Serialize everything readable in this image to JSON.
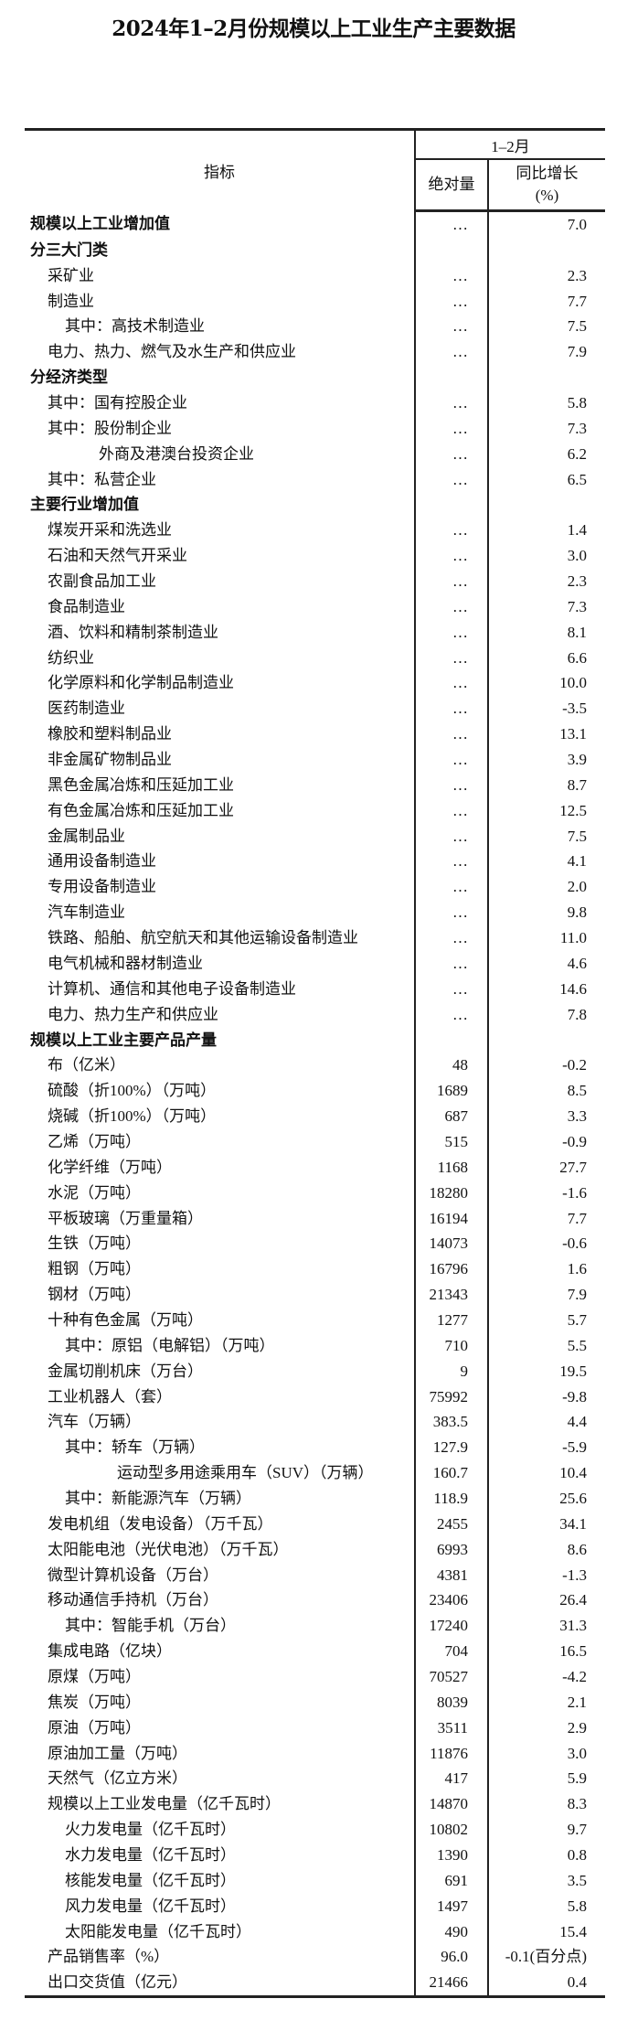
{
  "title": "2024年1–2月份规模以上工业生产主要数据",
  "header": {
    "indicator": "指标",
    "period": "1–2月",
    "absolute": "绝对量",
    "growth": "同比增长",
    "growth_unit": "(%)"
  },
  "rows": [
    {
      "label": "规模以上工业增加值",
      "abs": "…",
      "pct": "7.0",
      "level": 0,
      "bold": true
    },
    {
      "label": "分三大门类",
      "abs": "",
      "pct": "",
      "level": 0,
      "bold": true
    },
    {
      "label": "采矿业",
      "abs": "…",
      "pct": "2.3",
      "level": 1
    },
    {
      "label": "制造业",
      "abs": "…",
      "pct": "7.7",
      "level": 1
    },
    {
      "label": "其中：高技术制造业",
      "abs": "…",
      "pct": "7.5",
      "level": 2
    },
    {
      "label": "电力、热力、燃气及水生产和供应业",
      "abs": "…",
      "pct": "7.9",
      "level": 1
    },
    {
      "label": "分经济类型",
      "abs": "",
      "pct": "",
      "level": 0,
      "bold": true
    },
    {
      "label": "其中：国有控股企业",
      "abs": "…",
      "pct": "5.8",
      "level": 1
    },
    {
      "label": "其中：股份制企业",
      "abs": "…",
      "pct": "7.3",
      "level": 1
    },
    {
      "label": "外商及港澳台投资企业",
      "abs": "…",
      "pct": "6.2",
      "level": 3
    },
    {
      "label": "其中：私营企业",
      "abs": "…",
      "pct": "6.5",
      "level": 1
    },
    {
      "label": "主要行业增加值",
      "abs": "",
      "pct": "",
      "level": 0,
      "bold": true
    },
    {
      "label": "煤炭开采和洗选业",
      "abs": "…",
      "pct": "1.4",
      "level": 1
    },
    {
      "label": "石油和天然气开采业",
      "abs": "…",
      "pct": "3.0",
      "level": 1
    },
    {
      "label": "农副食品加工业",
      "abs": "…",
      "pct": "2.3",
      "level": 1
    },
    {
      "label": "食品制造业",
      "abs": "…",
      "pct": "7.3",
      "level": 1
    },
    {
      "label": "酒、饮料和精制茶制造业",
      "abs": "…",
      "pct": "8.1",
      "level": 1
    },
    {
      "label": "纺织业",
      "abs": "…",
      "pct": "6.6",
      "level": 1
    },
    {
      "label": "化学原料和化学制品制造业",
      "abs": "…",
      "pct": "10.0",
      "level": 1
    },
    {
      "label": "医药制造业",
      "abs": "…",
      "pct": "-3.5",
      "level": 1
    },
    {
      "label": "橡胶和塑料制品业",
      "abs": "…",
      "pct": "13.1",
      "level": 1
    },
    {
      "label": "非金属矿物制品业",
      "abs": "…",
      "pct": "3.9",
      "level": 1
    },
    {
      "label": "黑色金属冶炼和压延加工业",
      "abs": "…",
      "pct": "8.7",
      "level": 1
    },
    {
      "label": "有色金属冶炼和压延加工业",
      "abs": "…",
      "pct": "12.5",
      "level": 1
    },
    {
      "label": "金属制品业",
      "abs": "…",
      "pct": "7.5",
      "level": 1
    },
    {
      "label": "通用设备制造业",
      "abs": "…",
      "pct": "4.1",
      "level": 1
    },
    {
      "label": "专用设备制造业",
      "abs": "…",
      "pct": "2.0",
      "level": 1
    },
    {
      "label": "汽车制造业",
      "abs": "…",
      "pct": "9.8",
      "level": 1
    },
    {
      "label": "铁路、船舶、航空航天和其他运输设备制造业",
      "abs": "…",
      "pct": "11.0",
      "level": 1
    },
    {
      "label": "电气机械和器材制造业",
      "abs": "…",
      "pct": "4.6",
      "level": 1
    },
    {
      "label": "计算机、通信和其他电子设备制造业",
      "abs": "…",
      "pct": "14.6",
      "level": 1
    },
    {
      "label": "电力、热力生产和供应业",
      "abs": "…",
      "pct": "7.8",
      "level": 1
    },
    {
      "label": "规模以上工业主要产品产量",
      "abs": "",
      "pct": "",
      "level": 0,
      "bold": true
    },
    {
      "label": "布（亿米）",
      "abs": "48",
      "pct": "-0.2",
      "level": 1
    },
    {
      "label": "硫酸（折100%）（万吨）",
      "abs": "1689",
      "pct": "8.5",
      "level": 1
    },
    {
      "label": "烧碱（折100%）（万吨）",
      "abs": "687",
      "pct": "3.3",
      "level": 1
    },
    {
      "label": "乙烯（万吨）",
      "abs": "515",
      "pct": "-0.9",
      "level": 1
    },
    {
      "label": "化学纤维（万吨）",
      "abs": "1168",
      "pct": "27.7",
      "level": 1
    },
    {
      "label": "水泥（万吨）",
      "abs": "18280",
      "pct": "-1.6",
      "level": 1
    },
    {
      "label": "平板玻璃（万重量箱）",
      "abs": "16194",
      "pct": "7.7",
      "level": 1
    },
    {
      "label": "生铁（万吨）",
      "abs": "14073",
      "pct": "-0.6",
      "level": 1
    },
    {
      "label": "粗钢（万吨）",
      "abs": "16796",
      "pct": "1.6",
      "level": 1
    },
    {
      "label": "钢材（万吨）",
      "abs": "21343",
      "pct": "7.9",
      "level": 1
    },
    {
      "label": "十种有色金属（万吨）",
      "abs": "1277",
      "pct": "5.7",
      "level": 1
    },
    {
      "label": "其中：原铝（电解铝）（万吨）",
      "abs": "710",
      "pct": "5.5",
      "level": 2
    },
    {
      "label": "金属切削机床（万台）",
      "abs": "9",
      "pct": "19.5",
      "level": 1
    },
    {
      "label": "工业机器人（套）",
      "abs": "75992",
      "pct": "-9.8",
      "level": 1
    },
    {
      "label": "汽车（万辆）",
      "abs": "383.5",
      "pct": "4.4",
      "level": 1
    },
    {
      "label": "其中：轿车（万辆）",
      "abs": "127.9",
      "pct": "-5.9",
      "level": 2
    },
    {
      "label": "运动型多用途乘用车（SUV）（万辆）",
      "abs": "160.7",
      "pct": "10.4",
      "level": 4
    },
    {
      "label": "其中：新能源汽车（万辆）",
      "abs": "118.9",
      "pct": "25.6",
      "level": 2
    },
    {
      "label": "发电机组（发电设备）（万千瓦）",
      "abs": "2455",
      "pct": "34.1",
      "level": 1
    },
    {
      "label": "太阳能电池（光伏电池）（万千瓦）",
      "abs": "6993",
      "pct": "8.6",
      "level": 1
    },
    {
      "label": "微型计算机设备（万台）",
      "abs": "4381",
      "pct": "-1.3",
      "level": 1
    },
    {
      "label": "移动通信手持机（万台）",
      "abs": "23406",
      "pct": "26.4",
      "level": 1
    },
    {
      "label": "其中：智能手机（万台）",
      "abs": "17240",
      "pct": "31.3",
      "level": 2
    },
    {
      "label": "集成电路（亿块）",
      "abs": "704",
      "pct": "16.5",
      "level": 1
    },
    {
      "label": "原煤（万吨）",
      "abs": "70527",
      "pct": "-4.2",
      "level": 1
    },
    {
      "label": "焦炭（万吨）",
      "abs": "8039",
      "pct": "2.1",
      "level": 1
    },
    {
      "label": "原油（万吨）",
      "abs": "3511",
      "pct": "2.9",
      "level": 1
    },
    {
      "label": "原油加工量（万吨）",
      "abs": "11876",
      "pct": "3.0",
      "level": 1
    },
    {
      "label": "天然气（亿立方米）",
      "abs": "417",
      "pct": "5.9",
      "level": 1
    },
    {
      "label": "规模以上工业发电量（亿千瓦时）",
      "abs": "14870",
      "pct": "8.3",
      "level": 1
    },
    {
      "label": "火力发电量（亿千瓦时）",
      "abs": "10802",
      "pct": "9.7",
      "level": 2
    },
    {
      "label": "水力发电量（亿千瓦时）",
      "abs": "1390",
      "pct": "0.8",
      "level": 2
    },
    {
      "label": "核能发电量（亿千瓦时）",
      "abs": "691",
      "pct": "3.5",
      "level": 2
    },
    {
      "label": "风力发电量（亿千瓦时）",
      "abs": "1497",
      "pct": "5.8",
      "level": 2
    },
    {
      "label": "太阳能发电量（亿千瓦时）",
      "abs": "490",
      "pct": "15.4",
      "level": 2
    },
    {
      "label": "产品销售率（%）",
      "abs": "96.0",
      "pct": "-0.1(百分点)",
      "level": 1
    },
    {
      "label": "出口交货值（亿元）",
      "abs": "21466",
      "pct": "0.4",
      "level": 1
    }
  ]
}
